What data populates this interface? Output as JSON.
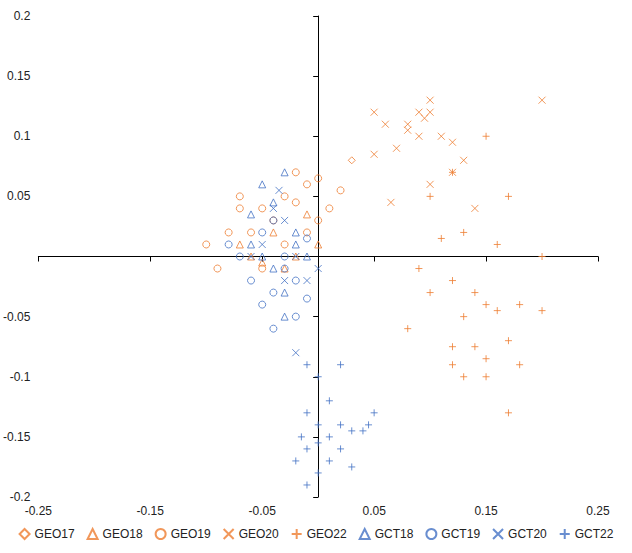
{
  "chart_data": {
    "type": "scatter",
    "xlim": [
      -0.25,
      0.25
    ],
    "xticks": [
      -0.25,
      -0.15,
      -0.05,
      0.05,
      0.15,
      0.25
    ],
    "ylim": [
      -0.2,
      0.2
    ],
    "yticks": [
      -0.2,
      -0.15,
      -0.1,
      -0.05,
      0.05,
      0.1,
      0.15,
      0.2
    ],
    "grid": false,
    "legend": "bottom",
    "series": [
      {
        "name": "GEO17",
        "color": "#ED7D31",
        "marker": "diamond",
        "values": [
          [
            0.03,
            0.08
          ]
        ]
      },
      {
        "name": "GEO18",
        "color": "#ED7D31",
        "marker": "triangle",
        "values": [
          [
            -0.06,
            0.0
          ],
          [
            -0.04,
            0.02
          ],
          [
            -0.02,
            0.0
          ],
          [
            -0.05,
            -0.005
          ],
          [
            0.0,
            0.01
          ],
          [
            -0.03,
            -0.01
          ],
          [
            -0.01,
            0.035
          ],
          [
            -0.07,
            0.01
          ]
        ]
      },
      {
        "name": "GEO19",
        "color": "#ED7D31",
        "marker": "circle",
        "values": [
          [
            -0.02,
            0.07
          ],
          [
            0.0,
            0.065
          ],
          [
            -0.01,
            0.06
          ],
          [
            -0.03,
            0.05
          ],
          [
            -0.05,
            0.04
          ],
          [
            -0.07,
            0.04
          ],
          [
            -0.08,
            0.02
          ],
          [
            -0.1,
            0.01
          ],
          [
            -0.09,
            -0.01
          ],
          [
            -0.06,
            0.02
          ],
          [
            -0.04,
            0.03
          ],
          [
            -0.02,
            0.045
          ],
          [
            0.02,
            0.055
          ],
          [
            0.01,
            0.04
          ],
          [
            -0.01,
            0.02
          ],
          [
            0.0,
            0.03
          ],
          [
            -0.07,
            0.05
          ],
          [
            -0.03,
            0.01
          ],
          [
            -0.05,
            -0.01
          ]
        ]
      },
      {
        "name": "GEO20",
        "color": "#ED7D31",
        "marker": "x",
        "values": [
          [
            0.05,
            0.12
          ],
          [
            0.06,
            0.11
          ],
          [
            0.08,
            0.11
          ],
          [
            0.09,
            0.12
          ],
          [
            0.1,
            0.13
          ],
          [
            0.1,
            0.12
          ],
          [
            0.08,
            0.105
          ],
          [
            0.09,
            0.1
          ],
          [
            0.11,
            0.1
          ],
          [
            0.12,
            0.095
          ],
          [
            0.05,
            0.085
          ],
          [
            0.07,
            0.09
          ],
          [
            0.13,
            0.08
          ],
          [
            0.12,
            0.07
          ],
          [
            0.14,
            0.04
          ],
          [
            0.065,
            0.045
          ],
          [
            0.2,
            0.13
          ],
          [
            0.1,
            0.06
          ],
          [
            0.095,
            0.115
          ]
        ]
      },
      {
        "name": "GEO22",
        "color": "#ED7D31",
        "marker": "plus",
        "values": [
          [
            0.15,
            0.1
          ],
          [
            0.12,
            0.07
          ],
          [
            0.1,
            0.05
          ],
          [
            0.17,
            0.05
          ],
          [
            0.11,
            0.015
          ],
          [
            0.13,
            0.02
          ],
          [
            0.16,
            0.01
          ],
          [
            0.2,
            0.0
          ],
          [
            0.09,
            -0.01
          ],
          [
            0.12,
            -0.02
          ],
          [
            0.14,
            -0.03
          ],
          [
            0.15,
            -0.04
          ],
          [
            0.13,
            -0.05
          ],
          [
            0.16,
            -0.045
          ],
          [
            0.18,
            -0.04
          ],
          [
            0.08,
            -0.06
          ],
          [
            0.2,
            -0.045
          ],
          [
            0.12,
            -0.075
          ],
          [
            0.14,
            -0.075
          ],
          [
            0.17,
            -0.07
          ],
          [
            0.12,
            -0.09
          ],
          [
            0.15,
            -0.085
          ],
          [
            0.13,
            -0.1
          ],
          [
            0.15,
            -0.1
          ],
          [
            0.18,
            -0.09
          ],
          [
            0.1,
            -0.03
          ],
          [
            0.17,
            -0.13
          ]
        ]
      },
      {
        "name": "GCT18",
        "color": "#4472C4",
        "marker": "triangle",
        "values": [
          [
            -0.05,
            0.06
          ],
          [
            -0.03,
            0.07
          ],
          [
            -0.04,
            0.045
          ],
          [
            -0.02,
            0.02
          ],
          [
            -0.06,
            0.01
          ],
          [
            -0.04,
            -0.01
          ],
          [
            -0.03,
            -0.03
          ],
          [
            -0.05,
            0.0
          ],
          [
            -0.03,
            -0.05
          ],
          [
            -0.01,
            0.0
          ],
          [
            -0.06,
            0.035
          ],
          [
            -0.02,
            0.01
          ]
        ]
      },
      {
        "name": "GCT19",
        "color": "#4472C4",
        "marker": "circle",
        "values": [
          [
            -0.06,
            -0.02
          ],
          [
            -0.04,
            -0.03
          ],
          [
            -0.03,
            -0.01
          ],
          [
            -0.05,
            -0.04
          ],
          [
            -0.02,
            -0.05
          ],
          [
            -0.04,
            0.03
          ],
          [
            -0.01,
            0.015
          ],
          [
            -0.03,
            0.0
          ],
          [
            -0.07,
            0.0
          ],
          [
            -0.02,
            -0.02
          ],
          [
            -0.05,
            0.02
          ],
          [
            -0.01,
            -0.035
          ],
          [
            -0.04,
            -0.06
          ],
          [
            -0.08,
            0.01
          ]
        ]
      },
      {
        "name": "GCT20",
        "color": "#4472C4",
        "marker": "x",
        "values": [
          [
            -0.02,
            -0.08
          ],
          [
            -0.04,
            0.04
          ],
          [
            -0.03,
            0.03
          ],
          [
            -0.05,
            0.01
          ],
          [
            -0.02,
            0.0
          ],
          [
            0.0,
            -0.01
          ],
          [
            -0.035,
            0.055
          ],
          [
            -0.01,
            -0.02
          ],
          [
            -0.06,
            0.0
          ],
          [
            -0.03,
            -0.02
          ]
        ]
      },
      {
        "name": "GCT22",
        "color": "#4472C4",
        "marker": "plus",
        "values": [
          [
            -0.01,
            -0.09
          ],
          [
            0.0,
            -0.1
          ],
          [
            0.02,
            -0.09
          ],
          [
            0.01,
            -0.12
          ],
          [
            -0.01,
            -0.13
          ],
          [
            0.0,
            -0.14
          ],
          [
            0.02,
            -0.14
          ],
          [
            0.03,
            -0.145
          ],
          [
            0.04,
            -0.145
          ],
          [
            0.05,
            -0.13
          ],
          [
            0.045,
            -0.14
          ],
          [
            -0.01,
            -0.16
          ],
          [
            0.01,
            -0.15
          ],
          [
            0.0,
            -0.155
          ],
          [
            -0.02,
            -0.17
          ],
          [
            0.01,
            -0.17
          ],
          [
            0.03,
            -0.175
          ],
          [
            0.0,
            -0.18
          ],
          [
            -0.01,
            -0.19
          ],
          [
            0.02,
            -0.16
          ],
          [
            -0.015,
            -0.15
          ]
        ]
      }
    ]
  }
}
